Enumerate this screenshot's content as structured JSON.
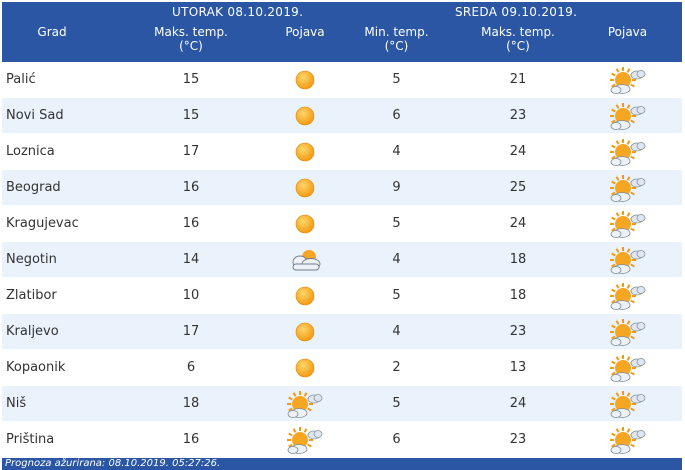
{
  "header": {
    "day1": "UTORAK  08.10.2019.",
    "day2": "SREDA  09.10.2019.",
    "col_city": "Grad",
    "col_max": "Maks. temp.",
    "col_min": "Min. temp.",
    "col_unit": "(°C)",
    "col_phen": "Pojava"
  },
  "rows": [
    {
      "city": "Palić",
      "max1": "15",
      "icon1": "sun-icon",
      "min2": "5",
      "max2": "21",
      "icon2": "sun-cloud-icon"
    },
    {
      "city": "Novi Sad",
      "max1": "15",
      "icon1": "sun-icon",
      "min2": "6",
      "max2": "23",
      "icon2": "sun-cloud-icon"
    },
    {
      "city": "Loznica",
      "max1": "17",
      "icon1": "sun-icon",
      "min2": "4",
      "max2": "24",
      "icon2": "sun-cloud-icon"
    },
    {
      "city": "Beograd",
      "max1": "16",
      "icon1": "sun-icon",
      "min2": "9",
      "max2": "25",
      "icon2": "sun-cloud-icon"
    },
    {
      "city": "Kragujevac",
      "max1": "16",
      "icon1": "sun-icon",
      "min2": "5",
      "max2": "24",
      "icon2": "sun-cloud-icon"
    },
    {
      "city": "Negotin",
      "max1": "14",
      "icon1": "cloud-sun-icon",
      "min2": "4",
      "max2": "18",
      "icon2": "sun-cloud-icon"
    },
    {
      "city": "Zlatibor",
      "max1": "10",
      "icon1": "sun-icon",
      "min2": "5",
      "max2": "18",
      "icon2": "sun-cloud-icon"
    },
    {
      "city": "Kraljevo",
      "max1": "17",
      "icon1": "sun-icon",
      "min2": "4",
      "max2": "23",
      "icon2": "sun-cloud-icon"
    },
    {
      "city": "Kopaonik",
      "max1": "6",
      "icon1": "sun-icon",
      "min2": "2",
      "max2": "13",
      "icon2": "sun-cloud-icon"
    },
    {
      "city": "Niš",
      "max1": "18",
      "icon1": "sun-cloud-icon",
      "min2": "5",
      "max2": "24",
      "icon2": "sun-cloud-icon"
    },
    {
      "city": "Priština",
      "max1": "16",
      "icon1": "sun-cloud-icon",
      "min2": "6",
      "max2": "23",
      "icon2": "sun-cloud-icon"
    }
  ],
  "footer": "Prognoza ažurirana:  08.10.2019. 05:27:26.",
  "colors": {
    "header_bg": "#2a56a4",
    "row_alt": "#eaf2fb",
    "sun": "#f6a623"
  }
}
